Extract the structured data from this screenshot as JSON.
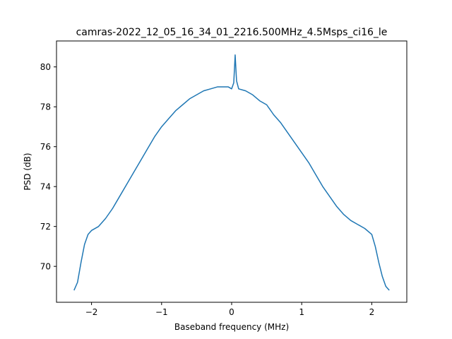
{
  "chart_data": {
    "type": "line",
    "title": "camras-2022_12_05_16_34_01_2216.500MHz_4.5Msps_ci16_le",
    "xlabel": "Baseband frequency (MHz)",
    "ylabel": "PSD (dB)",
    "xlim": [
      -2.5,
      2.5
    ],
    "ylim": [
      68.2,
      81.3
    ],
    "xticks": [
      -2,
      -1,
      0,
      1,
      2
    ],
    "xtick_labels": [
      "−2",
      "−1",
      "0",
      "1",
      "2"
    ],
    "yticks": [
      70,
      72,
      74,
      76,
      78,
      80
    ],
    "ytick_labels": [
      "70",
      "72",
      "74",
      "76",
      "78",
      "80"
    ],
    "grid": false,
    "legend": "none",
    "series": [
      {
        "color": "#1f77b4",
        "x": [
          -2.25,
          -2.2,
          -2.15,
          -2.1,
          -2.05,
          -2.0,
          -1.9,
          -1.8,
          -1.7,
          -1.6,
          -1.5,
          -1.4,
          -1.3,
          -1.2,
          -1.1,
          -1.0,
          -0.9,
          -0.8,
          -0.7,
          -0.6,
          -0.5,
          -0.4,
          -0.3,
          -0.2,
          -0.1,
          -0.05,
          0.0,
          0.03,
          0.05,
          0.07,
          0.1,
          0.2,
          0.3,
          0.4,
          0.5,
          0.6,
          0.7,
          0.8,
          0.9,
          1.0,
          1.1,
          1.2,
          1.3,
          1.4,
          1.5,
          1.6,
          1.7,
          1.8,
          1.9,
          2.0,
          2.05,
          2.1,
          2.15,
          2.2,
          2.25
        ],
        "y": [
          68.8,
          69.2,
          70.2,
          71.1,
          71.6,
          71.8,
          72.0,
          72.4,
          72.9,
          73.5,
          74.1,
          74.7,
          75.3,
          75.9,
          76.5,
          77.0,
          77.4,
          77.8,
          78.1,
          78.4,
          78.6,
          78.8,
          78.9,
          79.0,
          79.0,
          79.0,
          78.9,
          79.2,
          80.6,
          79.3,
          78.9,
          78.8,
          78.6,
          78.3,
          78.1,
          77.6,
          77.2,
          76.7,
          76.2,
          75.7,
          75.2,
          74.6,
          74.0,
          73.5,
          73.0,
          72.6,
          72.3,
          72.1,
          71.9,
          71.6,
          71.0,
          70.2,
          69.5,
          69.0,
          68.8
        ]
      }
    ]
  }
}
